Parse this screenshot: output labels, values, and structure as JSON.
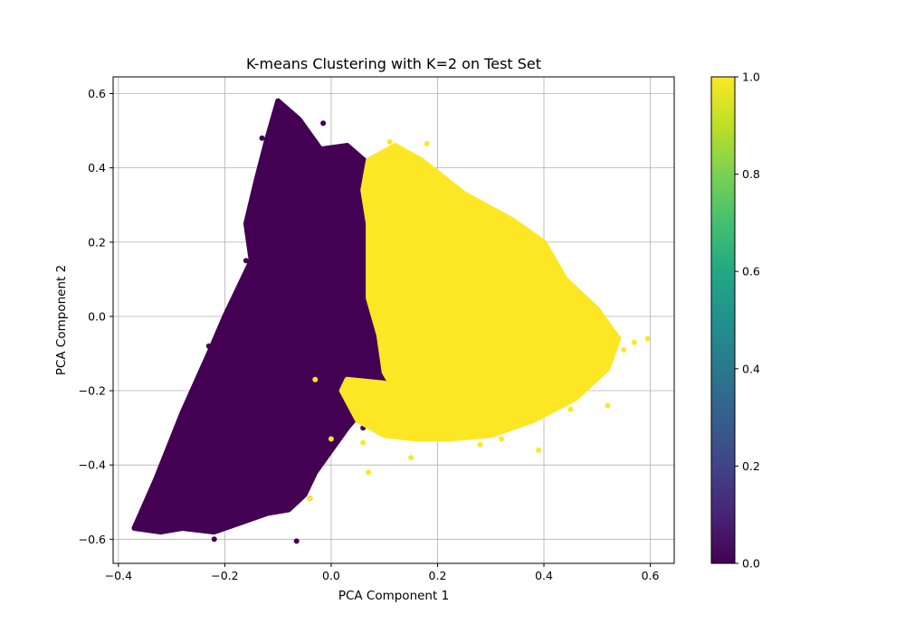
{
  "chart_data": {
    "type": "scatter",
    "title": "K-means Clustering with K=2 on Test Set",
    "xlabel": "PCA Component 1",
    "ylabel": "PCA Component 2",
    "xlim": [
      -0.41,
      0.645
    ],
    "ylim": [
      -0.665,
      0.645
    ],
    "xticks": [
      -0.4,
      -0.2,
      0.0,
      0.2,
      0.4,
      0.6
    ],
    "xtick_labels": [
      "−0.4",
      "−0.2",
      "0.0",
      "0.2",
      "0.4",
      "0.6"
    ],
    "yticks": [
      -0.6,
      -0.4,
      -0.2,
      0.0,
      0.2,
      0.4,
      0.6
    ],
    "ytick_labels": [
      "−0.6",
      "−0.4",
      "−0.2",
      "0.0",
      "0.2",
      "0.4",
      "0.6"
    ],
    "grid": true,
    "colormap": "viridis",
    "colorbar": {
      "range": [
        0.0,
        1.0
      ],
      "ticks": [
        0.0,
        0.2,
        0.4,
        0.6,
        0.8,
        1.0
      ],
      "tick_labels": [
        "0.0",
        "0.2",
        "0.4",
        "0.6",
        "0.8",
        "1.0"
      ]
    },
    "clusters": [
      {
        "label_value": 0,
        "color": "#440154",
        "polygon": [
          [
            -0.37,
            -0.57
          ],
          [
            -0.33,
            -0.44
          ],
          [
            -0.28,
            -0.26
          ],
          [
            -0.23,
            -0.1
          ],
          [
            -0.2,
            0.0
          ],
          [
            -0.15,
            0.15
          ],
          [
            -0.16,
            0.25
          ],
          [
            -0.14,
            0.37
          ],
          [
            -0.12,
            0.48
          ],
          [
            -0.1,
            0.58
          ],
          [
            -0.06,
            0.53
          ],
          [
            -0.02,
            0.45
          ],
          [
            0.03,
            0.46
          ],
          [
            0.07,
            0.41
          ],
          [
            0.06,
            0.34
          ],
          [
            0.07,
            0.25
          ],
          [
            0.07,
            0.15
          ],
          [
            0.07,
            0.05
          ],
          [
            0.09,
            -0.05
          ],
          [
            0.1,
            -0.15
          ],
          [
            0.12,
            -0.2
          ],
          [
            0.1,
            -0.22
          ],
          [
            0.06,
            -0.25
          ],
          [
            0.03,
            -0.3
          ],
          [
            0.0,
            -0.36
          ],
          [
            -0.03,
            -0.42
          ],
          [
            -0.05,
            -0.48
          ],
          [
            -0.08,
            -0.52
          ],
          [
            -0.12,
            -0.53
          ],
          [
            -0.18,
            -0.56
          ],
          [
            -0.22,
            -0.58
          ],
          [
            -0.28,
            -0.57
          ],
          [
            -0.32,
            -0.58
          ]
        ],
        "points": [
          [
            -0.37,
            -0.57
          ],
          [
            -0.22,
            -0.6
          ],
          [
            -0.065,
            -0.605
          ],
          [
            -0.1,
            0.58
          ],
          [
            -0.13,
            0.48
          ],
          [
            -0.015,
            0.52
          ],
          [
            -0.27,
            -0.27
          ],
          [
            -0.2,
            0.0
          ],
          [
            -0.04,
            -0.49
          ],
          [
            -0.12,
            -0.53
          ],
          [
            -0.25,
            -0.57
          ],
          [
            0.04,
            0.28
          ],
          [
            0.11,
            -0.18
          ],
          [
            -0.16,
            0.15
          ],
          [
            -0.23,
            -0.08
          ],
          [
            -0.18,
            0.05
          ],
          [
            0.07,
            0.4
          ],
          [
            -0.3,
            -0.35
          ],
          [
            -0.09,
            -0.5
          ],
          [
            0.06,
            -0.3
          ]
        ]
      },
      {
        "label_value": 1,
        "color": "#fde725",
        "polygon": [
          [
            0.07,
            0.42
          ],
          [
            0.12,
            0.46
          ],
          [
            0.17,
            0.42
          ],
          [
            0.25,
            0.33
          ],
          [
            0.34,
            0.26
          ],
          [
            0.4,
            0.2
          ],
          [
            0.44,
            0.1
          ],
          [
            0.5,
            0.02
          ],
          [
            0.54,
            -0.06
          ],
          [
            0.52,
            -0.14
          ],
          [
            0.46,
            -0.22
          ],
          [
            0.38,
            -0.28
          ],
          [
            0.3,
            -0.32
          ],
          [
            0.22,
            -0.33
          ],
          [
            0.16,
            -0.33
          ],
          [
            0.1,
            -0.32
          ],
          [
            0.05,
            -0.28
          ],
          [
            0.02,
            -0.2
          ],
          [
            0.03,
            -0.17
          ],
          [
            0.1,
            -0.18
          ],
          [
            0.12,
            -0.2
          ],
          [
            0.1,
            -0.15
          ],
          [
            0.09,
            -0.05
          ],
          [
            0.07,
            0.05
          ],
          [
            0.07,
            0.15
          ],
          [
            0.07,
            0.25
          ],
          [
            0.06,
            0.34
          ]
        ],
        "points": [
          [
            0.595,
            -0.06
          ],
          [
            0.18,
            0.465
          ],
          [
            0.11,
            0.47
          ],
          [
            0.55,
            -0.09
          ],
          [
            0.52,
            -0.24
          ],
          [
            0.28,
            -0.345
          ],
          [
            0.07,
            -0.42
          ],
          [
            -0.04,
            -0.49
          ],
          [
            0.0,
            -0.33
          ],
          [
            0.15,
            -0.38
          ],
          [
            0.39,
            -0.36
          ],
          [
            0.44,
            0.09
          ],
          [
            0.35,
            0.21
          ],
          [
            0.57,
            -0.07
          ],
          [
            0.48,
            0.0
          ],
          [
            0.06,
            -0.34
          ],
          [
            -0.03,
            -0.17
          ],
          [
            0.25,
            0.33
          ],
          [
            0.32,
            -0.33
          ],
          [
            0.45,
            -0.25
          ]
        ]
      }
    ]
  }
}
